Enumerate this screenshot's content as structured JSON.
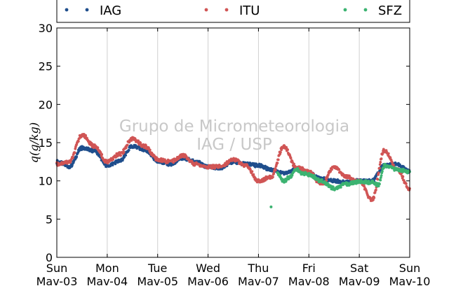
{
  "chart_data": {
    "type": "scatter",
    "title": "",
    "xlabel": "",
    "ylabel": "q(g/kg)",
    "ylim": [
      0,
      30
    ],
    "yticks": [
      0,
      5,
      10,
      15,
      20,
      25,
      30
    ],
    "xlim_days": [
      0,
      7
    ],
    "grid": "vertical",
    "legend_position": "top",
    "xtick_labels": [
      {
        "day": "Sun",
        "date": "Mav-03"
      },
      {
        "day": "Mon",
        "date": "Mav-04"
      },
      {
        "day": "Tue",
        "date": "Mav-05"
      },
      {
        "day": "Wed",
        "date": "Mav-06"
      },
      {
        "day": "Thu",
        "date": "Mav-07"
      },
      {
        "day": "Fri",
        "date": "Mav-08"
      },
      {
        "day": "Sat",
        "date": "Mav-09"
      },
      {
        "day": "Sun",
        "date": "Mav-10"
      }
    ],
    "watermark": [
      "Grupo de Micrometeorologia",
      "IAG / USP"
    ],
    "series": [
      {
        "name": "IAG",
        "color": "#1f4e8c",
        "x": [
          "Mav-03 00:00",
          "Mav-03 06:00",
          "Mav-03 12:00",
          "Mav-03 18:00",
          "Mav-04 00:00",
          "Mav-04 06:00",
          "Mav-04 12:00",
          "Mav-04 18:00",
          "Mav-05 00:00",
          "Mav-05 06:00",
          "Mav-05 12:00",
          "Mav-05 18:00",
          "Mav-06 00:00",
          "Mav-06 06:00",
          "Mav-06 12:00",
          "Mav-06 18:00",
          "Mav-07 00:00",
          "Mav-07 06:00",
          "Mav-07 12:00",
          "Mav-07 18:00",
          "Mav-08 00:00",
          "Mav-08 06:00",
          "Mav-08 12:00",
          "Mav-08 18:00",
          "Mav-09 00:00",
          "Mav-09 06:00",
          "Mav-09 12:00",
          "Mav-09 18:00",
          "Mav-10 00:00"
        ],
        "y": [
          12.5,
          11.9,
          14.3,
          13.9,
          12.0,
          12.6,
          14.5,
          14.0,
          12.6,
          12.2,
          13.0,
          12.5,
          11.8,
          11.7,
          12.5,
          12.2,
          12.0,
          11.5,
          11.0,
          11.5,
          11.0,
          10.3,
          10.0,
          9.8,
          10.0,
          10.0,
          12.0,
          12.2,
          11.2
        ]
      },
      {
        "name": "ITU",
        "color": "#d05555",
        "x": [
          "Mav-03 00:00",
          "Mav-03 06:00",
          "Mav-03 12:00",
          "Mav-03 18:00",
          "Mav-04 00:00",
          "Mav-04 06:00",
          "Mav-04 12:00",
          "Mav-04 18:00",
          "Mav-05 00:00",
          "Mav-05 06:00",
          "Mav-05 12:00",
          "Mav-05 18:00",
          "Mav-06 00:00",
          "Mav-06 06:00",
          "Mav-06 12:00",
          "Mav-06 18:00",
          "Mav-07 00:00",
          "Mav-07 06:00",
          "Mav-07 12:00",
          "Mav-07 18:00",
          "Mav-08 00:00",
          "Mav-08 06:00",
          "Mav-08 12:00",
          "Mav-08 18:00",
          "Mav-09 00:00",
          "Mav-09 06:00",
          "Mav-09 12:00",
          "Mav-09 18:00",
          "Mav-10 00:00"
        ],
        "y": [
          12.2,
          12.5,
          16.0,
          14.5,
          12.5,
          13.5,
          15.5,
          14.5,
          12.8,
          12.5,
          13.3,
          12.2,
          11.8,
          11.9,
          12.8,
          12.0,
          10.0,
          10.5,
          14.5,
          11.8,
          11.2,
          9.5,
          11.8,
          10.5,
          10.0,
          7.5,
          14.0,
          11.5,
          9.0
        ]
      },
      {
        "name": "SFZ",
        "color": "#3cb371",
        "x": [
          "Mav-07 06:00",
          "Mav-07 09:00",
          "Mav-07 12:00",
          "Mav-07 15:00",
          "Mav-07 18:00",
          "Mav-07 21:00",
          "Mav-08 00:00",
          "Mav-08 06:00",
          "Mav-08 12:00",
          "Mav-08 18:00",
          "Mav-09 00:00",
          "Mav-09 06:00",
          "Mav-09 09:00",
          "Mav-09 12:00",
          "Mav-09 18:00",
          "Mav-10 00:00"
        ],
        "y": [
          6.6,
          11.0,
          10.0,
          10.5,
          11.5,
          11.0,
          10.8,
          10.0,
          9.0,
          9.6,
          9.9,
          9.8,
          9.5,
          12.0,
          11.5,
          11.2
        ]
      }
    ]
  }
}
